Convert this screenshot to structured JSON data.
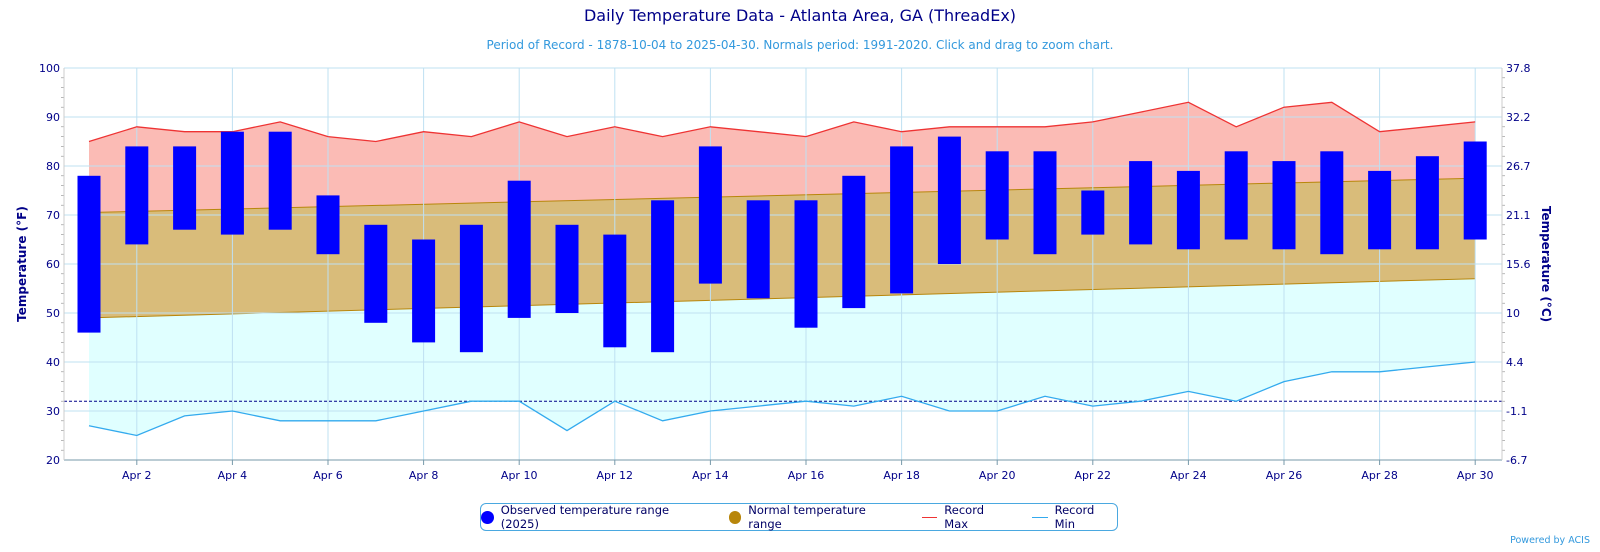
{
  "chart_data": {
    "type": "bar",
    "title": "Daily Temperature Data - Atlanta Area, GA (ThreadEx)",
    "subtitle": "Period of Record - 1878-10-04 to 2025-04-30. Normals period: 1991-2020. Click and drag to zoom chart.",
    "ylabel": "Temperature (°F)",
    "ylabel_right": "Temperature (°C)",
    "ylim": [
      20,
      100
    ],
    "y_ticks": [
      20,
      30,
      40,
      50,
      60,
      70,
      80,
      90,
      100
    ],
    "y_ticks_right": [
      "-6.7",
      "-1.1",
      "4.4",
      "10",
      "15.6",
      "21.1",
      "26.7",
      "32.2",
      "37.8"
    ],
    "days": [
      1,
      2,
      3,
      4,
      5,
      6,
      7,
      8,
      9,
      10,
      11,
      12,
      13,
      14,
      15,
      16,
      17,
      18,
      19,
      20,
      21,
      22,
      23,
      24,
      25,
      26,
      27,
      28,
      29,
      30
    ],
    "x_tick_labels": [
      "Apr 2",
      "Apr 4",
      "Apr 6",
      "Apr 8",
      "Apr 10",
      "Apr 12",
      "Apr 14",
      "Apr 16",
      "Apr 18",
      "Apr 20",
      "Apr 22",
      "Apr 24",
      "Apr 26",
      "Apr 28",
      "Apr 30"
    ],
    "freezing_line": 32,
    "grid": true,
    "legend_position": "bottom",
    "series": [
      {
        "name": "Observed temperature range (2025)",
        "color": "#0000ff",
        "high": [
          78,
          84,
          84,
          87,
          87,
          74,
          68,
          65,
          68,
          77,
          68,
          66,
          73,
          84,
          73,
          73,
          78,
          84,
          86,
          83,
          83,
          75,
          81,
          79,
          83,
          81,
          83,
          79,
          82,
          85
        ],
        "low": [
          46,
          64,
          67,
          66,
          67,
          62,
          48,
          44,
          42,
          49,
          50,
          43,
          42,
          56,
          53,
          47,
          51,
          54,
          60,
          65,
          62,
          66,
          64,
          63,
          65,
          63,
          62,
          63,
          63,
          65
        ]
      },
      {
        "name": "Normal temperature range",
        "color": "#b8860b",
        "high_start": 70.5,
        "high_end": 77.5,
        "low_start": 49,
        "low_end": 57
      },
      {
        "name": "Record Max",
        "color": "#ee3333",
        "values": [
          85,
          88,
          87,
          87,
          89,
          86,
          85,
          87,
          86,
          89,
          86,
          88,
          86,
          88,
          87,
          86,
          89,
          87,
          88,
          88,
          88,
          89,
          91,
          93,
          88,
          92,
          93,
          87,
          88,
          89
        ]
      },
      {
        "name": "Record Min",
        "color": "#33aaee",
        "values": [
          27,
          25,
          29,
          30,
          28,
          28,
          28,
          30,
          32,
          32,
          26,
          32,
          28,
          30,
          31,
          32,
          31,
          33,
          30,
          30,
          33,
          31,
          32,
          34,
          32,
          36,
          38,
          38,
          39,
          40
        ]
      }
    ]
  },
  "legend": {
    "observed": "Observed temperature range (2025)",
    "normal": "Normal temperature range",
    "record_max": "Record Max",
    "record_min": "Record Min"
  },
  "credit": "Powered by ACIS"
}
